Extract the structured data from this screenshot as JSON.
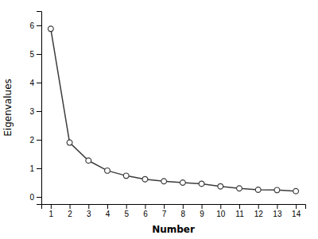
{
  "chart_data": {
    "type": "line",
    "x": [
      1,
      2,
      3,
      4,
      5,
      6,
      7,
      8,
      9,
      10,
      11,
      12,
      13,
      14
    ],
    "values": [
      5.88,
      1.9,
      1.27,
      0.92,
      0.74,
      0.62,
      0.55,
      0.5,
      0.46,
      0.37,
      0.3,
      0.25,
      0.24,
      0.2
    ],
    "xlabel": "Number",
    "ylabel": "Eigenvalues",
    "xlim": [
      0.5,
      14.5
    ],
    "ylim": [
      -0.25,
      6.5
    ],
    "xticks": [
      1,
      2,
      3,
      4,
      5,
      6,
      7,
      8,
      9,
      10,
      11,
      12,
      13,
      14
    ],
    "yticks": [
      0,
      1,
      2,
      3,
      4,
      5,
      6
    ],
    "color": "#3c3c3c",
    "marker": "circle",
    "grid": false
  }
}
